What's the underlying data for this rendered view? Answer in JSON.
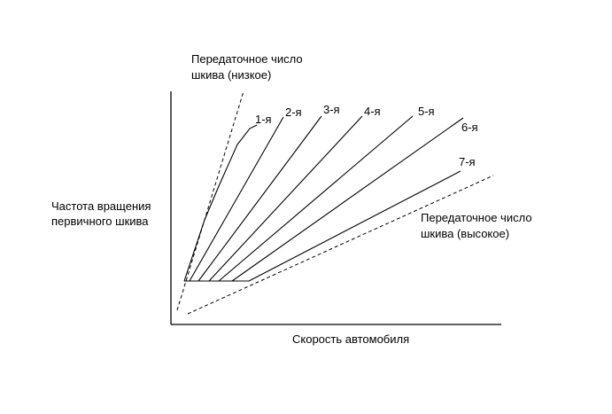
{
  "chart_data": {
    "type": "line",
    "xlabel": "Скорость автомобиля",
    "ylabel_lines": [
      "Частота вращения",
      "первичного шкива"
    ],
    "limits": {
      "low": {
        "label_lines": [
          "Передаточное число",
          "шкива (низкое)"
        ],
        "style": "dashed"
      },
      "high": {
        "label_lines": [
          "Передаточное число",
          "шкива (высокое)"
        ],
        "style": "dashed"
      }
    },
    "series": [
      {
        "name": "1-я"
      },
      {
        "name": "2-я"
      },
      {
        "name": "3-я"
      },
      {
        "name": "4-я"
      },
      {
        "name": "5-я"
      },
      {
        "name": "6-я"
      },
      {
        "name": "7-я"
      }
    ]
  }
}
